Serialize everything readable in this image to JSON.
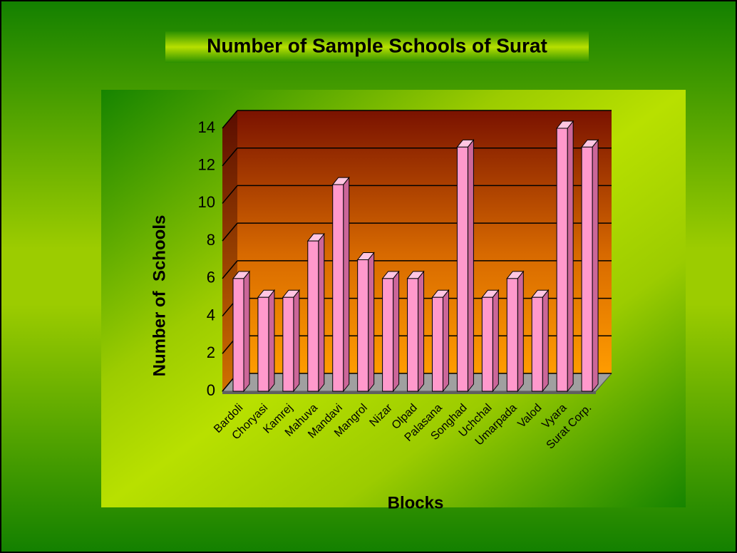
{
  "chart_data": {
    "type": "bar",
    "title": "Number of Sample Schools of Surat",
    "x_label": "Blocks",
    "y_label": "Number of  Schools",
    "categories": [
      "Bardoli",
      "Choryasi",
      "Kamrej",
      "Mahuva",
      "Mandavi",
      "Mangrol",
      "Nizar",
      "Olpad",
      "Palasana",
      "Songhad",
      "Uchchal",
      "Umarpada",
      "Valod",
      "Vyara",
      "Surat Corp."
    ],
    "values": [
      6,
      5,
      5,
      8,
      11,
      7,
      6,
      6,
      5,
      13,
      5,
      6,
      5,
      14,
      13
    ],
    "color": "#ff99cc",
    "ylim": [
      0,
      14
    ],
    "yticks": [
      0,
      2,
      4,
      6,
      8,
      10,
      12,
      14
    ],
    "grid": true
  }
}
